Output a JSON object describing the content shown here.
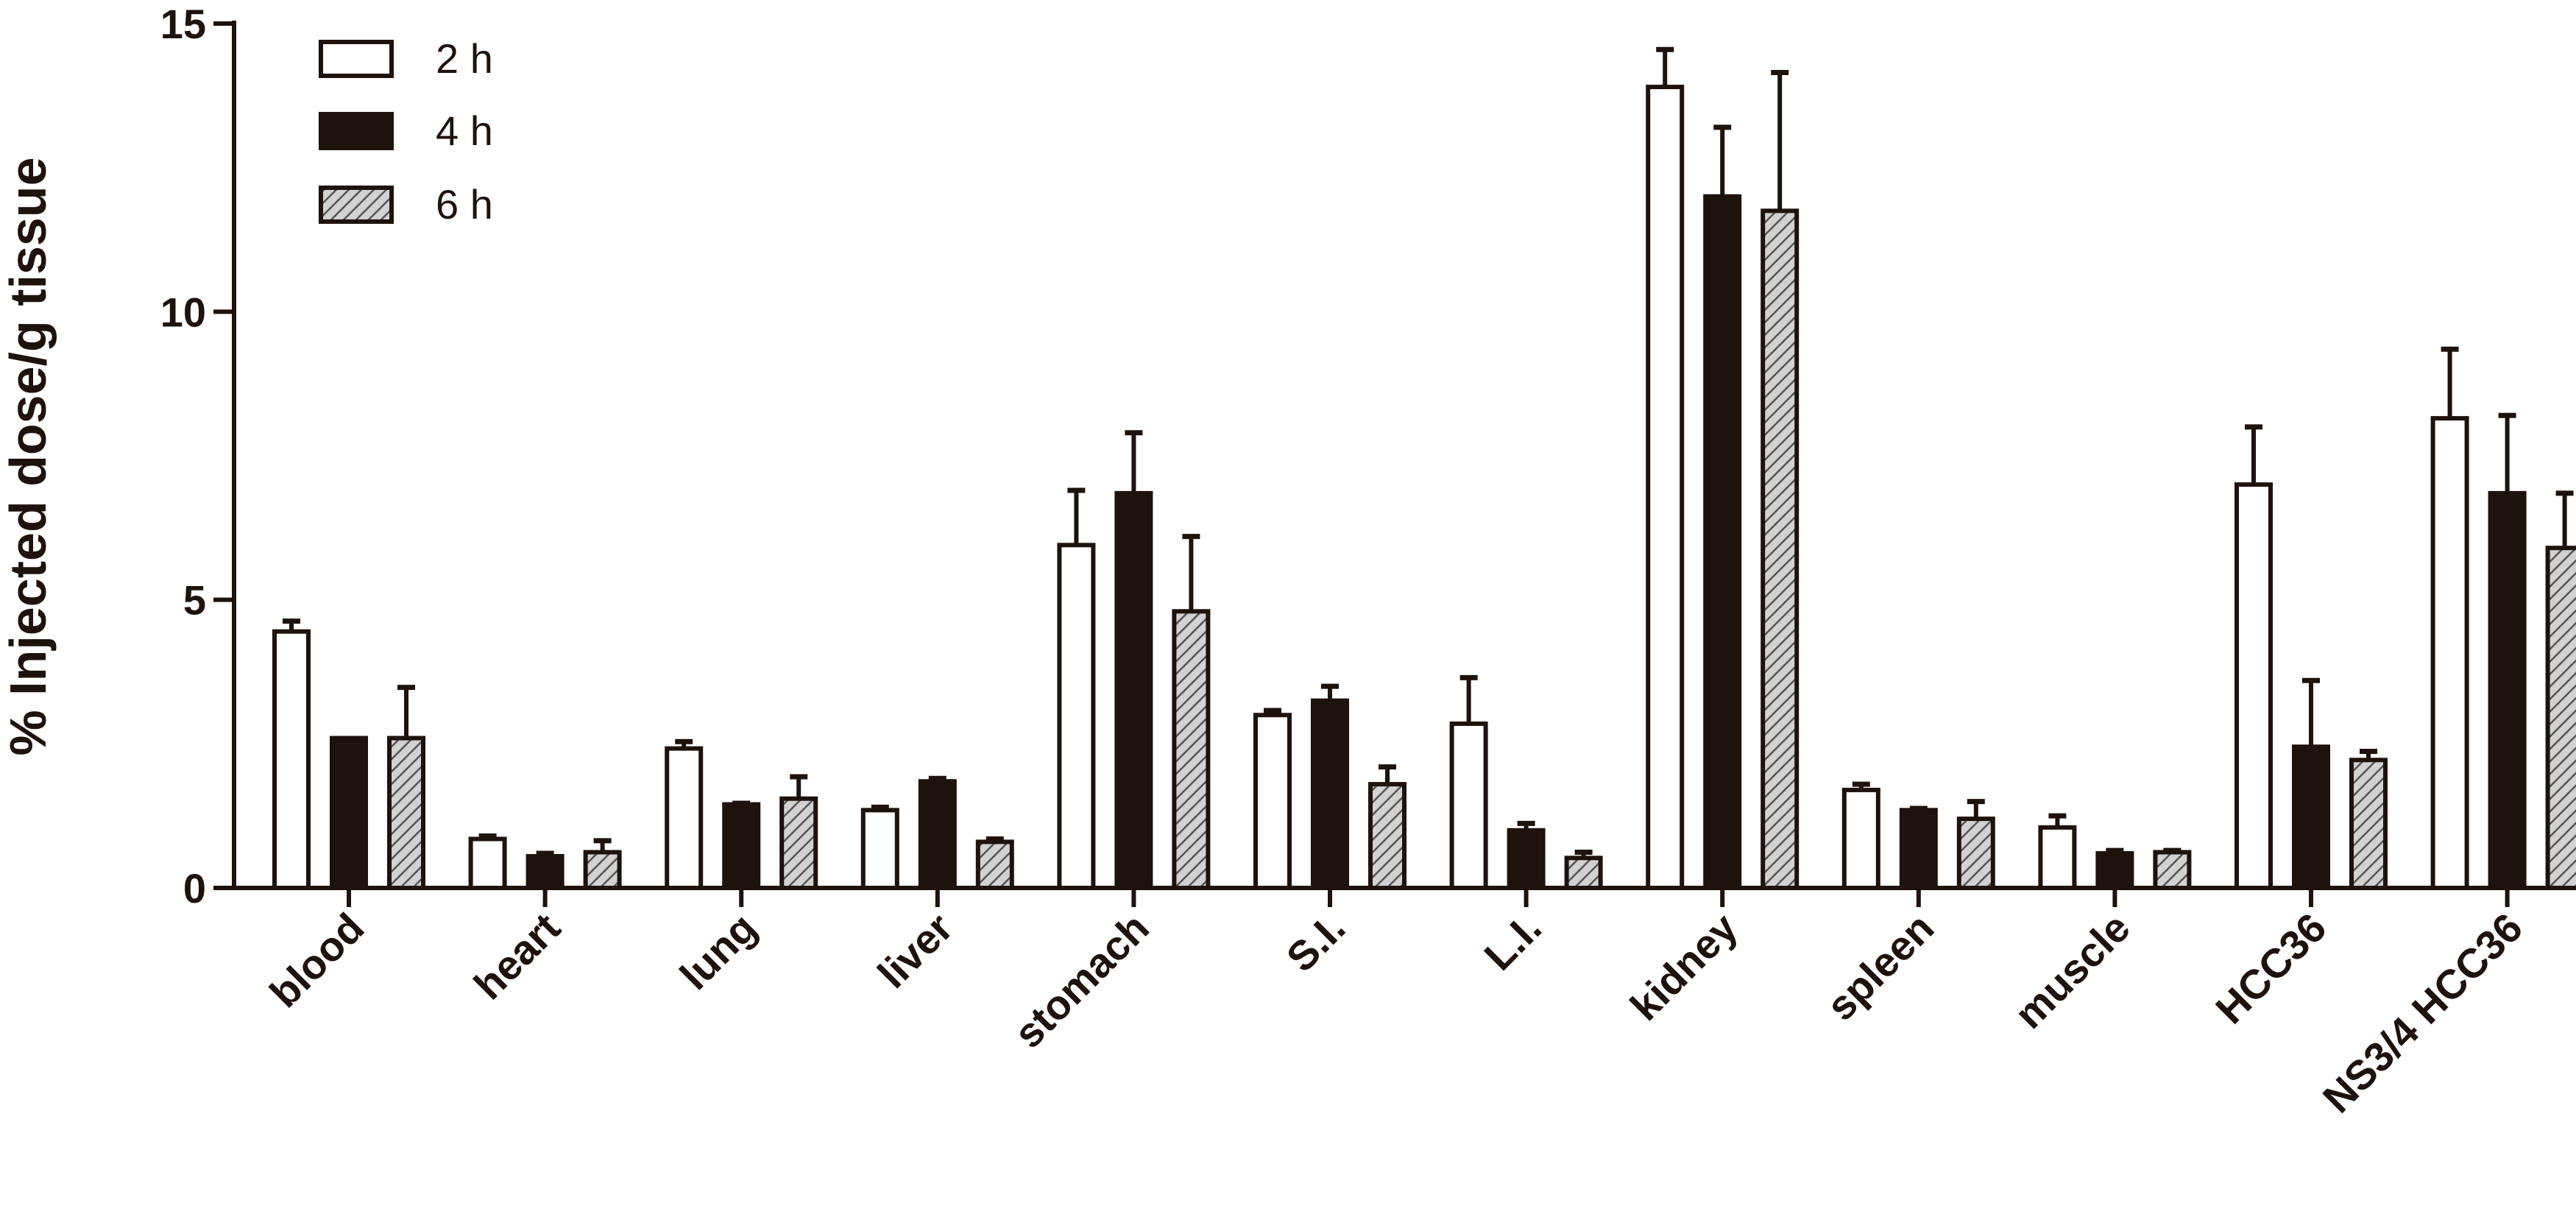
{
  "chart_data": {
    "type": "bar",
    "ylabel": "% Injected dose/g tissue",
    "ylim": [
      0,
      15
    ],
    "yticks": [
      0,
      5,
      10,
      15
    ],
    "categories": [
      "blood",
      "heart",
      "lung",
      "liver",
      "stomach",
      "S.I.",
      "L.I.",
      "kidney",
      "spleen",
      "muscle",
      "HCC36",
      "NS3/4 HCC36"
    ],
    "series": [
      {
        "name": "2 h",
        "fill": "white",
        "values": [
          4.45,
          0.85,
          2.42,
          1.35,
          5.95,
          3.0,
          2.85,
          13.9,
          1.7,
          1.05,
          7.0,
          8.15
        ],
        "errors": [
          0.18,
          0.05,
          0.12,
          0.05,
          0.95,
          0.08,
          0.8,
          0.65,
          0.1,
          0.2,
          1.0,
          1.2
        ]
      },
      {
        "name": "4 h",
        "fill": "black",
        "values": [
          2.6,
          0.55,
          1.45,
          1.85,
          6.85,
          3.25,
          1.0,
          12.0,
          1.35,
          0.6,
          2.45,
          6.85
        ],
        "errors": [
          0.0,
          0.05,
          0.02,
          0.05,
          1.05,
          0.25,
          0.12,
          1.2,
          0.03,
          0.05,
          1.15,
          1.35
        ]
      },
      {
        "name": "6 h",
        "fill": "hatched",
        "values": [
          2.6,
          0.62,
          1.55,
          0.8,
          4.8,
          1.8,
          0.52,
          11.75,
          1.2,
          0.62,
          2.22,
          5.9
        ],
        "errors": [
          0.88,
          0.2,
          0.38,
          0.05,
          1.3,
          0.3,
          0.1,
          2.4,
          0.3,
          0.03,
          0.15,
          0.95
        ]
      }
    ],
    "legend_position": "top-left",
    "grid": false
  },
  "colors": {
    "ink": "#1e120c",
    "hatch_bg": "#d2d2d2",
    "hatch_line": "#555555"
  }
}
